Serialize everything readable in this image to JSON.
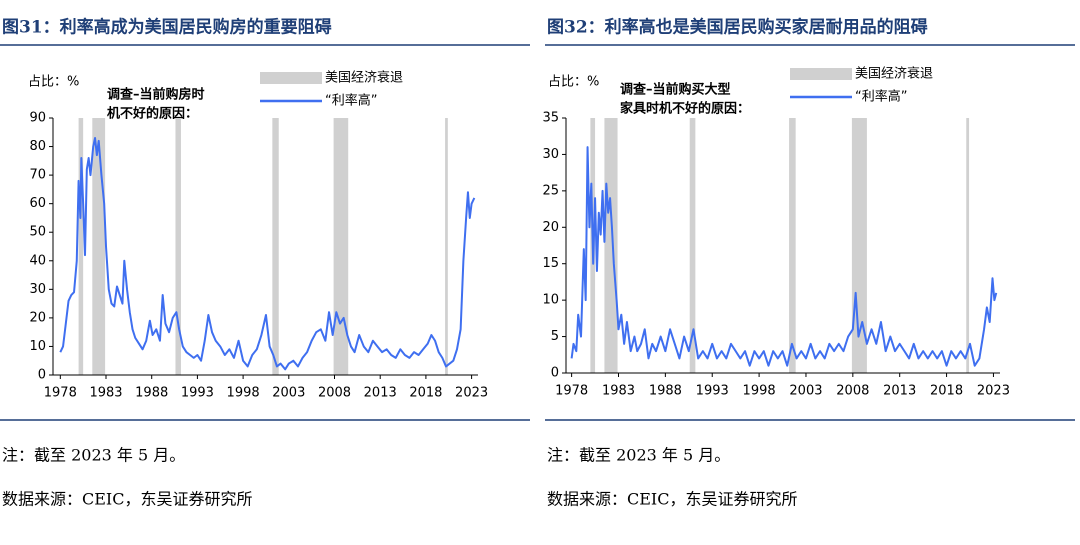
{
  "chart_data": [
    {
      "type": "line",
      "title": "图31：利率高成为美国居民购房的重要阻碍",
      "y_label": "占比：%",
      "annotation": [
        "调查–当前购房时",
        "机不好的原因："
      ],
      "recession_name": "美国经济衰退",
      "recession_color": "#d0d0d0",
      "recessions": [
        [
          1980.0,
          1980.5
        ],
        [
          1981.5,
          1982.9
        ],
        [
          1990.6,
          1991.2
        ],
        [
          2001.2,
          2001.9
        ],
        [
          2007.9,
          2009.5
        ],
        [
          2020.1,
          2020.4
        ]
      ],
      "xlim": [
        1977.2,
        2023.7
      ],
      "xticks": [
        1978,
        1983,
        1988,
        1993,
        1998,
        2003,
        2008,
        2013,
        2018,
        2023
      ],
      "ylim": [
        0,
        90
      ],
      "yticks": [
        0,
        10,
        20,
        30,
        40,
        50,
        60,
        70,
        80,
        90
      ],
      "x": [
        1978.0,
        1978.3,
        1978.6,
        1978.9,
        1979.2,
        1979.5,
        1979.8,
        1980.0,
        1980.2,
        1980.3,
        1980.5,
        1980.7,
        1980.9,
        1981.1,
        1981.3,
        1981.6,
        1981.8,
        1982.0,
        1982.2,
        1982.5,
        1982.8,
        1983.0,
        1983.3,
        1983.6,
        1983.9,
        1984.2,
        1984.5,
        1984.8,
        1985.0,
        1985.3,
        1985.6,
        1985.9,
        1986.2,
        1986.6,
        1987.0,
        1987.4,
        1987.8,
        1988.1,
        1988.5,
        1988.9,
        1989.2,
        1989.5,
        1989.9,
        1990.3,
        1990.7,
        1991.0,
        1991.4,
        1991.8,
        1992.2,
        1992.6,
        1993.0,
        1993.4,
        1993.8,
        1994.2,
        1994.6,
        1995.0,
        1995.5,
        1996.0,
        1996.5,
        1997.0,
        1997.5,
        1998.0,
        1998.5,
        1999.0,
        1999.5,
        2000.0,
        2000.5,
        2000.9,
        2001.3,
        2001.7,
        2002.1,
        2002.6,
        2003.0,
        2003.5,
        2004.0,
        2004.5,
        2005.0,
        2005.5,
        2006.0,
        2006.5,
        2007.0,
        2007.4,
        2007.8,
        2008.2,
        2008.6,
        2009.0,
        2009.4,
        2009.8,
        2010.2,
        2010.7,
        2011.2,
        2011.7,
        2012.2,
        2012.7,
        2013.2,
        2013.7,
        2014.2,
        2014.7,
        2015.2,
        2015.7,
        2016.2,
        2016.7,
        2017.2,
        2017.7,
        2018.2,
        2018.6,
        2019.0,
        2019.4,
        2019.8,
        2020.2,
        2020.6,
        2021.0,
        2021.4,
        2021.8,
        2022.1,
        2022.4,
        2022.6,
        2022.8,
        2023.0,
        2023.3
      ],
      "series": [
        {
          "name": "“利率高”",
          "color": "#3f6ff0",
          "values": [
            8,
            10,
            18,
            26,
            28,
            29,
            40,
            68,
            55,
            76,
            60,
            42,
            72,
            76,
            70,
            80,
            83,
            77,
            82,
            70,
            60,
            45,
            30,
            25,
            24,
            31,
            28,
            25,
            40,
            30,
            22,
            16,
            13,
            11,
            9,
            12,
            19,
            14,
            16,
            12,
            28,
            18,
            15,
            20,
            22,
            16,
            10,
            8,
            7,
            6,
            7,
            5,
            12,
            21,
            15,
            12,
            10,
            7,
            9,
            6,
            12,
            5,
            3,
            7,
            9,
            14,
            21,
            10,
            7,
            3,
            4,
            2,
            4,
            5,
            3,
            6,
            8,
            12,
            15,
            16,
            12,
            22,
            14,
            22,
            18,
            20,
            14,
            10,
            8,
            14,
            10,
            8,
            12,
            10,
            8,
            9,
            7,
            6,
            9,
            7,
            6,
            8,
            7,
            9,
            11,
            14,
            12,
            8,
            6,
            3,
            4,
            5,
            9,
            16,
            40,
            55,
            64,
            55,
            60,
            62
          ]
        }
      ],
      "note": "注：截至 2023 年 5 月。",
      "source": "数据来源：CEIC，东吴证券研究所"
    },
    {
      "type": "line",
      "title": "图32：利率高也是美国居民购买家居耐用品的阻碍",
      "y_label": "占比：%",
      "annotation": [
        "调查–当前购买大型",
        "家具时机不好的原因："
      ],
      "recession_name": "美国经济衰退",
      "recession_color": "#d0d0d0",
      "recessions": [
        [
          1980.0,
          1980.5
        ],
        [
          1981.5,
          1982.9
        ],
        [
          1990.6,
          1991.2
        ],
        [
          2001.2,
          2001.9
        ],
        [
          2007.9,
          2009.5
        ],
        [
          2020.1,
          2020.4
        ]
      ],
      "xlim": [
        1977.4,
        2023.7
      ],
      "xticks": [
        1978,
        1983,
        1988,
        1993,
        1998,
        2003,
        2008,
        2013,
        2018,
        2023
      ],
      "ylim": [
        0,
        35
      ],
      "yticks": [
        0,
        5,
        10,
        15,
        20,
        25,
        30,
        35
      ],
      "x": [
        1978.0,
        1978.2,
        1978.5,
        1978.7,
        1979.0,
        1979.3,
        1979.5,
        1979.7,
        1979.9,
        1980.1,
        1980.3,
        1980.5,
        1980.7,
        1980.9,
        1981.1,
        1981.3,
        1981.5,
        1981.7,
        1981.9,
        1982.1,
        1982.3,
        1982.5,
        1982.8,
        1983.0,
        1983.3,
        1983.6,
        1983.9,
        1984.3,
        1984.7,
        1985.0,
        1985.4,
        1985.8,
        1986.2,
        1986.6,
        1987.0,
        1987.5,
        1988.0,
        1988.5,
        1989.0,
        1989.5,
        1990.0,
        1990.5,
        1991.0,
        1991.5,
        1992.0,
        1992.5,
        1993.0,
        1993.5,
        1994.0,
        1994.5,
        1995.0,
        1995.5,
        1996.0,
        1996.5,
        1997.0,
        1997.5,
        1998.0,
        1998.5,
        1999.0,
        1999.5,
        2000.0,
        2000.5,
        2001.0,
        2001.5,
        2002.0,
        2002.5,
        2003.0,
        2003.5,
        2004.0,
        2004.5,
        2005.0,
        2005.5,
        2006.0,
        2006.5,
        2007.0,
        2007.5,
        2008.0,
        2008.3,
        2008.6,
        2009.0,
        2009.5,
        2010.0,
        2010.5,
        2011.0,
        2011.5,
        2012.0,
        2012.5,
        2013.0,
        2013.5,
        2014.0,
        2014.5,
        2015.0,
        2015.5,
        2016.0,
        2016.5,
        2017.0,
        2017.5,
        2018.0,
        2018.5,
        2019.0,
        2019.5,
        2020.0,
        2020.5,
        2021.0,
        2021.5,
        2022.0,
        2022.3,
        2022.6,
        2022.9,
        2023.1,
        2023.3
      ],
      "series": [
        {
          "name": "“利率高”",
          "color": "#3f6ff0",
          "values": [
            2,
            4,
            3,
            8,
            5,
            17,
            10,
            31,
            20,
            26,
            15,
            24,
            14,
            22,
            19,
            25,
            18,
            26,
            22,
            24,
            20,
            15,
            10,
            6,
            8,
            4,
            7,
            3,
            5,
            3,
            4,
            6,
            2,
            4,
            3,
            5,
            3,
            6,
            4,
            2,
            5,
            3,
            6,
            2,
            3,
            2,
            4,
            2,
            3,
            2,
            4,
            3,
            2,
            3,
            1,
            3,
            2,
            3,
            1,
            3,
            2,
            3,
            1,
            4,
            2,
            3,
            2,
            4,
            2,
            3,
            2,
            4,
            3,
            4,
            3,
            5,
            6,
            11,
            5,
            7,
            4,
            6,
            4,
            7,
            3,
            5,
            3,
            4,
            3,
            2,
            4,
            2,
            3,
            2,
            3,
            2,
            3,
            1,
            3,
            2,
            3,
            2,
            4,
            1,
            2,
            6,
            9,
            7,
            13,
            10,
            11
          ]
        }
      ],
      "note": "注：截至 2023 年 5 月。",
      "source": "数据来源：CEIC，东吴证券研究所"
    }
  ]
}
